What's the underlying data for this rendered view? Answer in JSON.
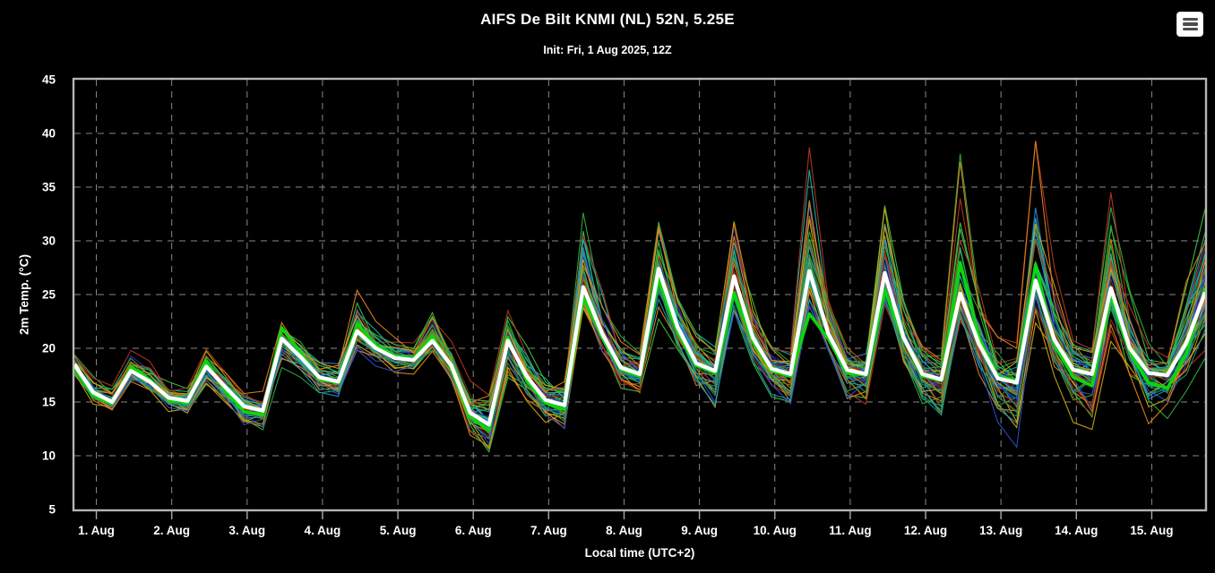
{
  "toolbar": {
    "menu_button": {
      "icon": "hamburger-menu",
      "background": "#ffffff",
      "bar_color": "#4d4d4d"
    }
  },
  "chart_data": {
    "type": "line",
    "title": "AIFS De Bilt KNMI (NL) 52N, 5.25E",
    "subtitle": "Init: Fri, 1 Aug 2025, 12Z",
    "xlabel": "Local time (UTC+2)",
    "ylabel": "2m Temp. (°C)",
    "background": "#000000",
    "text_color": "#ffffff",
    "axis_color": "#b5b5b5",
    "tick_color": "#aaaaaa",
    "grid": {
      "show": true,
      "color": "#878787",
      "dash": "7,6"
    },
    "ylim": [
      5,
      45
    ],
    "y_ticks": [
      5,
      10,
      15,
      20,
      25,
      30,
      35,
      40,
      45
    ],
    "x_tick_labels": [
      "1. Aug",
      "2. Aug",
      "3. Aug",
      "4. Aug",
      "5. Aug",
      "6. Aug",
      "7. Aug",
      "8. Aug",
      "9. Aug",
      "10. Aug",
      "11. Aug",
      "12. Aug",
      "13. Aug",
      "14. Aug",
      "15. Aug"
    ],
    "x_total_hours": 360,
    "x_first_tick_hour": 7,
    "x_tick_interval_hours": 24,
    "step_hours": 6,
    "series": [
      {
        "name": "ensemble-median",
        "color": "#ffffff",
        "width": 4.3,
        "values": [
          18.5,
          15.9,
          15.0,
          17.9,
          16.9,
          15.4,
          15.1,
          18.3,
          16.4,
          14.6,
          14.2,
          20.9,
          19.2,
          17.3,
          16.9,
          21.6,
          20.0,
          19.1,
          18.9,
          20.7,
          18.4,
          14.0,
          12.9,
          20.7,
          17.4,
          15.2,
          14.7,
          25.7,
          21.4,
          18.2,
          17.6,
          27.4,
          22.0,
          18.6,
          17.9,
          26.7,
          21.0,
          18.1,
          17.6,
          27.2,
          21.4,
          18.0,
          17.6,
          27.0,
          21.0,
          17.6,
          17.1,
          25.1,
          20.4,
          17.2,
          16.8,
          26.3,
          20.8,
          18.0,
          17.6,
          25.6,
          20.0,
          17.7,
          17.5,
          20.5,
          25.2
        ]
      },
      {
        "name": "control-run",
        "color": "#0cd60c",
        "width": 3.5,
        "values": [
          18.2,
          15.6,
          14.8,
          18.3,
          17.1,
          15.2,
          14.9,
          18.8,
          16.0,
          14.1,
          13.8,
          21.9,
          19.6,
          17.1,
          16.8,
          22.3,
          20.3,
          19.3,
          19.0,
          21.2,
          18.1,
          13.6,
          12.4,
          21.0,
          17.0,
          14.9,
          14.3,
          24.8,
          21.0,
          18.0,
          17.4,
          26.4,
          21.5,
          18.4,
          17.7,
          25.2,
          20.6,
          17.9,
          17.4,
          23.2,
          20.9,
          17.7,
          17.5,
          25.4,
          20.8,
          17.4,
          17.0,
          28.0,
          21.0,
          17.4,
          17.0,
          27.8,
          20.4,
          17.3,
          16.5,
          24.9,
          19.6,
          16.8,
          16.3,
          19.5,
          25.6
        ]
      }
    ],
    "ensemble_members": {
      "count": 50,
      "width": 1.1,
      "seed": 11,
      "palette": [
        "#2eaa3f",
        "#2e8b57",
        "#3fbf3f",
        "#159b6b",
        "#17b3a6",
        "#1899c2",
        "#2f7fd6",
        "#2a52c8",
        "#2a2fae",
        "#e0821a",
        "#b85e08",
        "#caa50e",
        "#9aa019",
        "#b33524",
        "#8c1d12"
      ],
      "envelope_min": [
        17.2,
        14.6,
        13.8,
        16.4,
        15.3,
        13.9,
        13.5,
        16.2,
        14.7,
        12.6,
        11.9,
        18.2,
        17.3,
        15.4,
        14.9,
        19.3,
        18.3,
        17.3,
        16.9,
        18.6,
        16.3,
        11.6,
        10.0,
        17.2,
        14.9,
        12.6,
        11.6,
        21.6,
        18.6,
        15.9,
        14.9,
        22.6,
        18.9,
        15.6,
        12.9,
        22.1,
        17.9,
        14.9,
        12.9,
        22.6,
        18.1,
        14.6,
        13.3,
        21.9,
        17.6,
        13.6,
        12.1,
        21.1,
        17.1,
        12.6,
        10.4,
        21.6,
        17.3,
        13.1,
        11.9,
        20.6,
        16.9,
        12.9,
        12.5,
        15.5,
        17.0
      ],
      "envelope_max": [
        19.7,
        17.5,
        16.8,
        19.8,
        18.8,
        17.2,
        16.6,
        20.1,
        18.2,
        16.4,
        16.0,
        23.3,
        21.5,
        19.5,
        19.0,
        26.0,
        22.5,
        21.0,
        20.5,
        24.3,
        21.0,
        17.5,
        16.5,
        23.5,
        20.5,
        18.0,
        17.5,
        34.8,
        26.0,
        21.5,
        20.5,
        33.0,
        27.0,
        22.0,
        21.0,
        36.8,
        25.5,
        21.0,
        20.0,
        38.7,
        26.5,
        21.5,
        20.5,
        35.3,
        26.0,
        21.0,
        20.0,
        38.1,
        27.0,
        21.5,
        20.5,
        39.3,
        27.5,
        21.0,
        20.0,
        34.5,
        25.5,
        20.5,
        19.5,
        27.0,
        35.7
      ]
    }
  }
}
